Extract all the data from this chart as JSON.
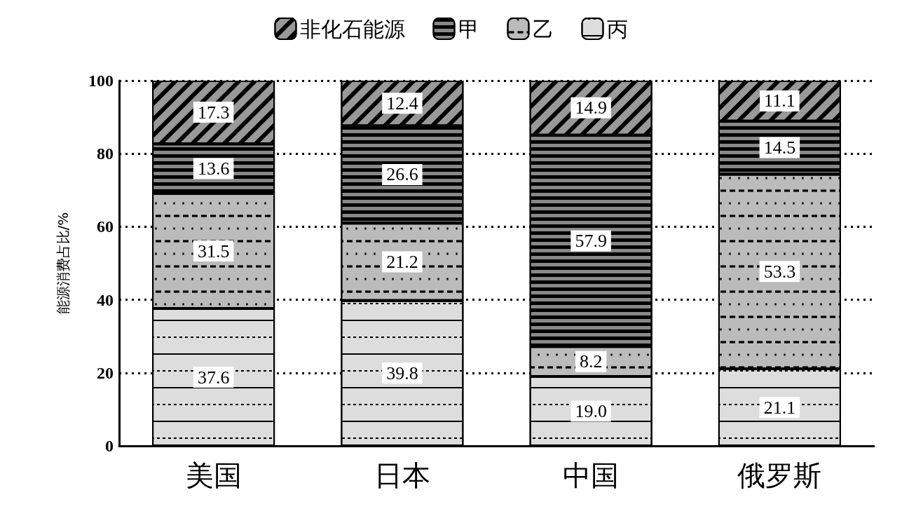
{
  "chart_data": {
    "type": "bar",
    "stacked": true,
    "ylabel": "能源消费占比/%",
    "categories": [
      "美国",
      "日本",
      "中国",
      "俄罗斯"
    ],
    "series": [
      {
        "name": "丙",
        "color": "#dddddd",
        "values": [
          37.6,
          39.8,
          19.0,
          21.1
        ],
        "value_labels": [
          "37.6",
          "39.8",
          "19.0",
          "21.1"
        ]
      },
      {
        "name": "乙",
        "color": "#bbbbbb",
        "values": [
          31.5,
          21.2,
          8.2,
          53.3
        ],
        "value_labels": [
          "31.5",
          "21.2",
          "8.2",
          "53.3"
        ]
      },
      {
        "name": "甲",
        "color": "#888888",
        "values": [
          13.6,
          26.6,
          57.9,
          14.5
        ],
        "value_labels": [
          "13.6",
          "26.6",
          "57.9",
          "14.5"
        ]
      },
      {
        "name": "非化石能源",
        "color": "#999999",
        "values": [
          17.3,
          12.4,
          14.9,
          11.1
        ],
        "value_labels": [
          "17.3",
          "12.4",
          "14.9",
          "11.1"
        ]
      }
    ],
    "ylim": [
      0,
      100
    ],
    "yticks": [
      0,
      20,
      40,
      60,
      80,
      100
    ],
    "grid": "y",
    "legend": "top"
  }
}
